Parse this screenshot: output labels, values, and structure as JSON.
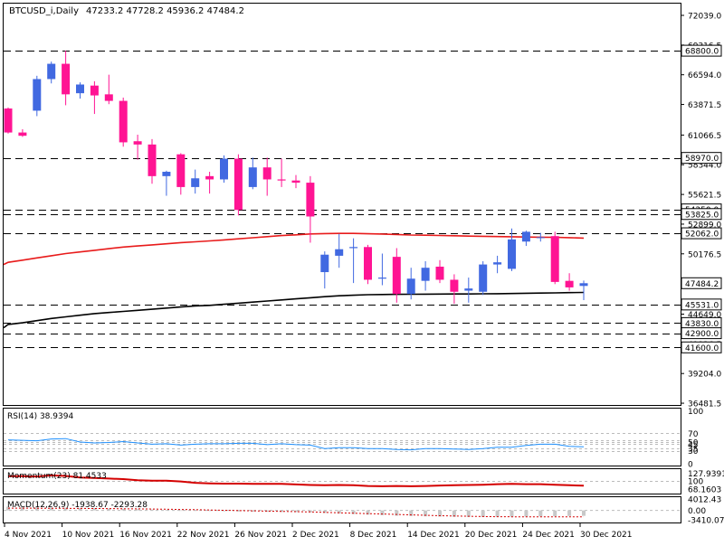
{
  "chart_data": [
    {
      "type": "candlestick",
      "title": "BTCUSD_i,Daily",
      "ohlc_label": "47233.2 47728.2 45936.2 47484.2",
      "current_price": 47484.2,
      "ylim": [
        36485.1,
        72039.0
      ],
      "y_ticks": [
        "72039.0",
        "69316.5",
        "66594.0",
        "63871.5",
        "61066.5",
        "58344.0",
        "55621.5",
        "52899.0",
        "50176.5",
        "47454.0",
        "44649.0",
        "41926.5",
        "39204.0",
        "36481.5"
      ],
      "x_ticks": [
        "4 Nov 2021",
        "10 Nov 2021",
        "16 Nov 2021",
        "22 Nov 2021",
        "26 Nov 2021",
        "2 Dec 2021",
        "8 Dec 2021",
        "14 Dec 2021",
        "20 Dec 2021",
        "24 Dec 2021",
        "30 Dec 2021"
      ],
      "levels": [
        68800.0,
        58970.0,
        54250.0,
        53825.0,
        52062.0,
        45531.0,
        43830.0,
        42900.0,
        41600.0
      ],
      "level_labels": [
        "68800.0",
        "58970.0",
        "54250.0",
        "53825.0",
        "52062.0",
        "45531.0",
        "43830.0",
        "42900.0",
        "41600.0"
      ],
      "candles": [
        {
          "o": 63500,
          "h": 63600,
          "l": 61200,
          "c": 61300
        },
        {
          "o": 61300,
          "h": 61600,
          "l": 60900,
          "c": 61000
        },
        {
          "o": 63300,
          "h": 66500,
          "l": 62800,
          "c": 66200
        },
        {
          "o": 66200,
          "h": 67800,
          "l": 65800,
          "c": 67600
        },
        {
          "o": 67600,
          "h": 68800,
          "l": 63800,
          "c": 64800
        },
        {
          "o": 64900,
          "h": 65900,
          "l": 64400,
          "c": 65700
        },
        {
          "o": 65600,
          "h": 66000,
          "l": 63000,
          "c": 64700
        },
        {
          "o": 64800,
          "h": 66600,
          "l": 63900,
          "c": 64200
        },
        {
          "o": 64200,
          "h": 64500,
          "l": 60000,
          "c": 60400
        },
        {
          "o": 60500,
          "h": 61100,
          "l": 58800,
          "c": 60200
        },
        {
          "o": 60200,
          "h": 60700,
          "l": 56600,
          "c": 57300
        },
        {
          "o": 57300,
          "h": 57800,
          "l": 55500,
          "c": 57700
        },
        {
          "o": 59300,
          "h": 59400,
          "l": 55600,
          "c": 56300
        },
        {
          "o": 56300,
          "h": 57900,
          "l": 55700,
          "c": 57100
        },
        {
          "o": 57300,
          "h": 57700,
          "l": 55700,
          "c": 57000
        },
        {
          "o": 57000,
          "h": 59200,
          "l": 56700,
          "c": 58900
        },
        {
          "o": 58900,
          "h": 59300,
          "l": 53700,
          "c": 54200
        },
        {
          "o": 56300,
          "h": 59000,
          "l": 56100,
          "c": 58100
        },
        {
          "o": 58100,
          "h": 59000,
          "l": 55500,
          "c": 57000
        },
        {
          "o": 57000,
          "h": 58900,
          "l": 56300,
          "c": 56900
        },
        {
          "o": 56900,
          "h": 57400,
          "l": 56200,
          "c": 56700
        },
        {
          "o": 56700,
          "h": 57300,
          "l": 51200,
          "c": 53600
        },
        {
          "o": 48500,
          "h": 50400,
          "l": 47000,
          "c": 50100
        },
        {
          "o": 50000,
          "h": 52000,
          "l": 48900,
          "c": 50600
        },
        {
          "o": 50700,
          "h": 51600,
          "l": 47500,
          "c": 50800
        },
        {
          "o": 50800,
          "h": 51000,
          "l": 47400,
          "c": 47800
        },
        {
          "o": 47900,
          "h": 50200,
          "l": 47300,
          "c": 48000
        },
        {
          "o": 49900,
          "h": 50700,
          "l": 45700,
          "c": 46500
        },
        {
          "o": 46500,
          "h": 48900,
          "l": 46000,
          "c": 47900
        },
        {
          "o": 47700,
          "h": 49500,
          "l": 46800,
          "c": 48900
        },
        {
          "o": 49000,
          "h": 49600,
          "l": 47500,
          "c": 47800
        },
        {
          "o": 47800,
          "h": 48300,
          "l": 45600,
          "c": 46700
        },
        {
          "o": 46800,
          "h": 48000,
          "l": 45700,
          "c": 47000
        },
        {
          "o": 46700,
          "h": 49500,
          "l": 46400,
          "c": 49200
        },
        {
          "o": 49200,
          "h": 50000,
          "l": 48400,
          "c": 49400
        },
        {
          "o": 48800,
          "h": 52500,
          "l": 48600,
          "c": 51500
        },
        {
          "o": 51300,
          "h": 52300,
          "l": 50900,
          "c": 52200
        },
        {
          "o": 51700,
          "h": 52100,
          "l": 51300,
          "c": 51700
        },
        {
          "o": 51800,
          "h": 52200,
          "l": 47400,
          "c": 47600
        },
        {
          "o": 47700,
          "h": 48400,
          "l": 46800,
          "c": 47100
        },
        {
          "o": 47233.2,
          "h": 47728.2,
          "l": 45936.2,
          "c": 47484.2
        }
      ],
      "ma_fast": [
        49400,
        49600,
        49800,
        50000,
        50200,
        50350,
        50500,
        50650,
        50800,
        50900,
        51000,
        51100,
        51200,
        51280,
        51360,
        51450,
        51550,
        51650,
        51750,
        51850,
        51920,
        52000,
        52030,
        52050,
        52050,
        52020,
        51990,
        51950,
        51900,
        51880,
        51860,
        51830,
        51800,
        51780,
        51760,
        51740,
        51720,
        51700,
        51690,
        51660,
        51620
      ],
      "ma_slow": [
        43700,
        43850,
        44050,
        44250,
        44400,
        44550,
        44700,
        44800,
        44900,
        45000,
        45100,
        45200,
        45300,
        45400,
        45450,
        45550,
        45650,
        45750,
        45850,
        45950,
        46050,
        46150,
        46250,
        46330,
        46380,
        46430,
        46450,
        46460,
        46470,
        46480,
        46490,
        46500,
        46500,
        46510,
        46520,
        46540,
        46560,
        46580,
        46600,
        46620,
        46640
      ],
      "up_color": "#4169e1",
      "down_color": "#ff1493",
      "ma_fast_color": "#e81b1b",
      "ma_slow_color": "#000000"
    },
    {
      "type": "line",
      "title": "RSI(14) 38.9394",
      "ylim": [
        0,
        100
      ],
      "y_ticks": [
        "70",
        "50",
        "45",
        "35",
        "30",
        "0"
      ],
      "y_tick_values": [
        70,
        50,
        45,
        35,
        30,
        0
      ],
      "levels": [
        70,
        55,
        50,
        45,
        35,
        30
      ],
      "values": [
        55,
        54,
        53,
        57,
        58,
        50,
        48,
        49,
        51,
        48,
        45,
        46,
        43,
        45,
        46,
        46,
        47,
        47,
        44,
        46,
        44,
        43,
        35,
        37,
        37,
        35,
        35,
        33,
        32,
        35,
        35,
        34,
        33,
        35,
        38,
        38,
        42,
        45,
        45,
        40,
        39
      ],
      "color": "#1e90ff"
    },
    {
      "type": "line",
      "title": "Momentum(23) 81.4533",
      "ylim": [
        55,
        140
      ],
      "y_ticks": [
        "127.9391",
        "100",
        "68.1603"
      ],
      "y_tick_values": [
        127.9391,
        100,
        68.1603
      ],
      "levels": [
        100
      ],
      "values": [
        117,
        117,
        116,
        120,
        118,
        112,
        110,
        108,
        106,
        102,
        100,
        100,
        97,
        92,
        90,
        89,
        89,
        88,
        88,
        88,
        86,
        84,
        83,
        84,
        83,
        80,
        79,
        80,
        79,
        80,
        82,
        83,
        84,
        85,
        87,
        88,
        87,
        87,
        85,
        83,
        81.4533
      ],
      "color": "#d40000"
    },
    {
      "type": "bar",
      "title": "MACD(12,26,9) -1938.67 -2293.28",
      "ylim": [
        -4000,
        4400
      ],
      "y_ticks": [
        "4012.43",
        "0.00",
        "-3410.07"
      ],
      "y_tick_values": [
        4012.43,
        0,
        -3410.07
      ],
      "levels": [
        0
      ],
      "values": [
        1300,
        1250,
        1150,
        1050,
        950,
        850,
        800,
        700,
        600,
        450,
        300,
        150,
        0,
        -100,
        -200,
        -300,
        -400,
        -450,
        -500,
        -550,
        -600,
        -700,
        -900,
        -1100,
        -1300,
        -1500,
        -1700,
        -1900,
        -2000,
        -2100,
        -2200,
        -2300,
        -2350,
        -2350,
        -2300,
        -2250,
        -2200,
        -2150,
        -2100,
        -2000,
        -1938.67
      ],
      "signal": [
        800,
        800,
        780,
        760,
        740,
        720,
        700,
        650,
        600,
        550,
        500,
        420,
        340,
        250,
        150,
        50,
        -50,
        -150,
        -250,
        -350,
        -450,
        -550,
        -700,
        -850,
        -1000,
        -1150,
        -1300,
        -1450,
        -1600,
        -1750,
        -1900,
        -2000,
        -2100,
        -2200,
        -2250,
        -2280,
        -2300,
        -2300,
        -2300,
        -2295,
        -2293.28
      ],
      "color": "#c8c8c8",
      "signal_color": "#d40000"
    }
  ]
}
